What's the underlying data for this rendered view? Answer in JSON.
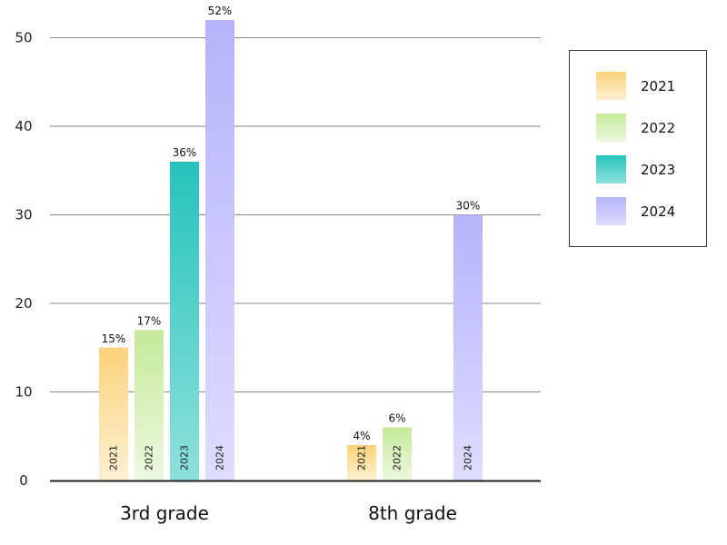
{
  "chart_data": {
    "type": "bar",
    "categories": [
      "3rd grade",
      "8th grade"
    ],
    "ylim": [
      0,
      52
    ],
    "yticks": [
      0,
      10,
      20,
      30,
      40,
      50
    ],
    "grid": true,
    "legend_position": "top-right",
    "series": [
      {
        "name": "2021",
        "values": [
          15,
          4
        ],
        "labels": [
          "15%",
          "4%"
        ],
        "bar_label": "2021",
        "color_top": "#fbd27a",
        "color_bottom": "#fdf0d4"
      },
      {
        "name": "2022",
        "values": [
          17,
          6
        ],
        "labels": [
          "17%",
          "6%"
        ],
        "bar_label": "2022",
        "color_top": "#c5e99a",
        "color_bottom": "#edf8e0"
      },
      {
        "name": "2023",
        "values": [
          36,
          null
        ],
        "labels": [
          "36%",
          ""
        ],
        "bar_label": "2023",
        "color_top": "#26c3bc",
        "color_bottom": "#8ee0dc"
      },
      {
        "name": "2024",
        "values": [
          52,
          30
        ],
        "labels": [
          "52%",
          "30%"
        ],
        "bar_label": "2024",
        "color_top": "#b6b3fb",
        "color_bottom": "#dedcff"
      }
    ]
  }
}
